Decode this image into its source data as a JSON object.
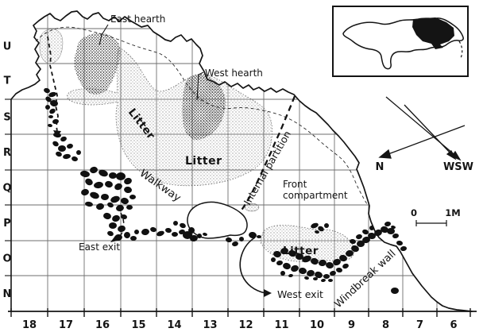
{
  "map": {
    "labels": {
      "east_hearth": "East hearth",
      "west_hearth": "West hearth",
      "litter_nw": "Litter",
      "litter_center": "Litter",
      "litter_se": "Litter",
      "walkway": "Walkway",
      "internal_partition": "Internal partition",
      "front_line1": "Front",
      "front_line2": "compartment",
      "east_exit": "East exit",
      "west_exit": "West exit",
      "windbreak_wall": "Windbreak wall"
    },
    "grid": {
      "rows": [
        "U",
        "T",
        "S",
        "R",
        "Q",
        "P",
        "O",
        "N"
      ],
      "cols": [
        "18",
        "17",
        "16",
        "15",
        "14",
        "13",
        "12",
        "11",
        "10",
        "9",
        "8",
        "7",
        "6"
      ]
    },
    "compass": {
      "n": "N",
      "wsw": "WSW"
    },
    "scale": {
      "start": "0",
      "end": "1M"
    },
    "colors": {
      "ink": "#141414",
      "grid": "#6e6e6e",
      "paper": "#ffffff"
    }
  }
}
